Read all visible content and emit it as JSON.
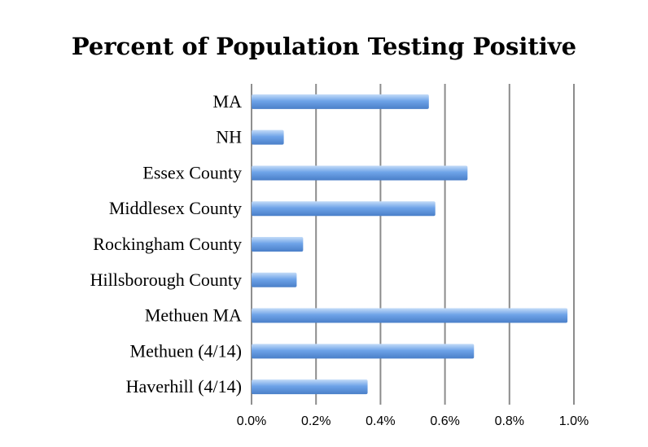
{
  "chart_data": {
    "type": "bar",
    "orientation": "horizontal",
    "title": "Percent of Population Testing Positive",
    "xlabel": "",
    "ylabel": "",
    "categories": [
      "MA",
      "NH",
      "Essex County",
      "Middlesex County",
      "Rockingham County",
      "Hillsborough County",
      "Methuen MA",
      "Methuen (4/14)",
      "Haverhill (4/14)"
    ],
    "values": [
      0.55,
      0.1,
      0.67,
      0.57,
      0.16,
      0.14,
      0.98,
      0.69,
      0.36
    ],
    "xlim": [
      0,
      1.0
    ],
    "x_ticks": [
      "0.0%",
      "0.2%",
      "0.4%",
      "0.6%",
      "0.8%",
      "1.0%"
    ],
    "x_tick_values": [
      0,
      0.2,
      0.4,
      0.6,
      0.8,
      1.0
    ],
    "grid": true,
    "legend": "none",
    "colors": {
      "bar": "#6ea3e8",
      "bar_highlight": "#c4dcf8",
      "bar_shadow": "#4a7fc8",
      "grid": "#8c8c8c"
    }
  }
}
